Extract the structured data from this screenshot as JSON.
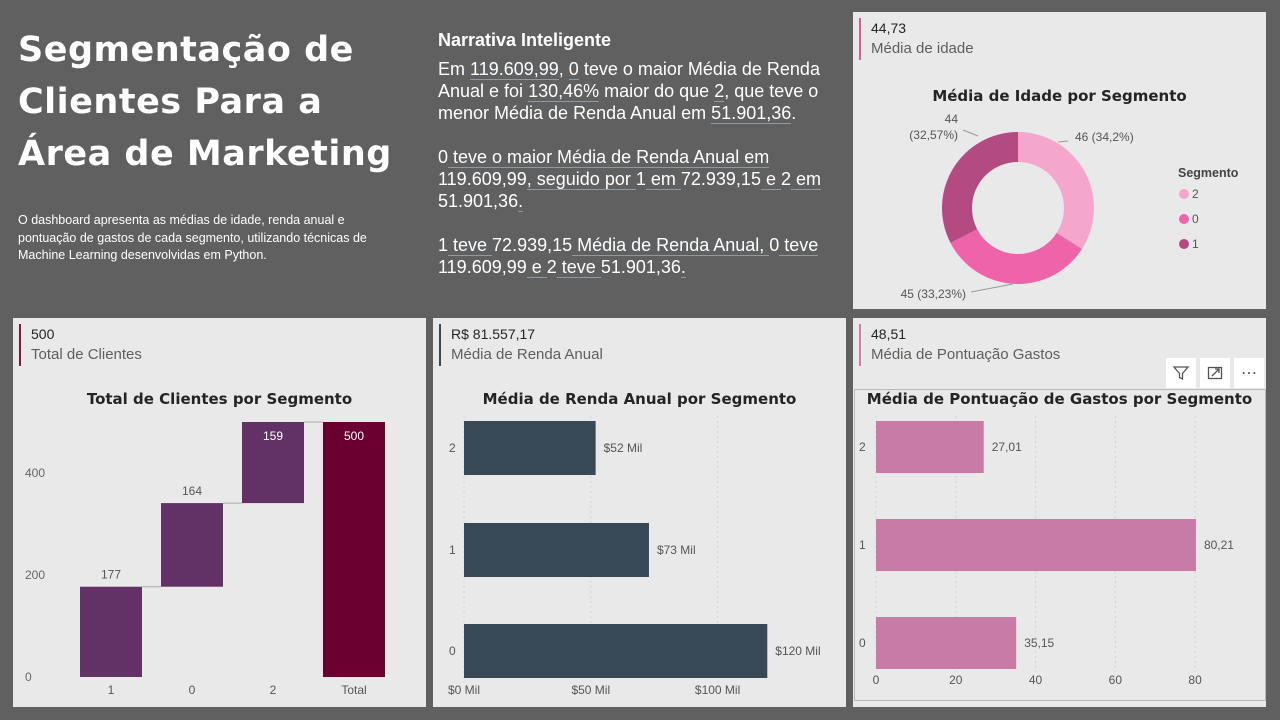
{
  "header": {
    "title": "Segmentação de Clientes Para a Área de Marketing",
    "description": "O dashboard apresenta as médias de idade, renda anual e pontuação de gastos de cada segmento, utilizando técnicas de Machine Learning desenvolvidas em Python."
  },
  "narrative": {
    "title": "Narrativa Inteligente",
    "p1": [
      "Em ",
      "119.609,99",
      ", ",
      "0",
      " teve o maior Média de Renda Anual e foi ",
      "130,46%",
      " maior do que ",
      "2",
      ", que teve o menor Média de Renda Anual em ",
      "51.901,36",
      "."
    ],
    "p2": [
      "0",
      " teve o maior Média de Renda Anual em ",
      "119.609,99",
      ", seguido por ",
      "1",
      " em ",
      "72.939,15",
      " e ",
      "2",
      " em ",
      "51.901,36",
      "."
    ],
    "p3": [
      "1",
      " teve ",
      "72.939,15",
      " Média de Renda Anual, ",
      "0",
      " teve ",
      "119.609,99",
      " e ",
      "2",
      " teve ",
      "51.901,36",
      "."
    ]
  },
  "kpis": {
    "idade": {
      "value": "44,73",
      "label": "Média de idade"
    },
    "clientes": {
      "value": "500",
      "label": "Total de Clientes"
    },
    "renda": {
      "value": "R$ 81.557,17",
      "label": "Média de Renda Anual"
    },
    "gastos": {
      "value": "48,51",
      "label": "Média de Pontuação Gastos"
    }
  },
  "colors": {
    "accent_pink": "#e05a9a",
    "accent_dark": "#8a1a3a",
    "accent_slate": "#374856",
    "accent_rose": "#d07aa8"
  },
  "toolbar": {
    "icons": [
      "filter-icon",
      "focus-mode-icon",
      "more-options-icon"
    ],
    "more_label": "⋯"
  },
  "chart_data": [
    {
      "type": "pie",
      "title": "Média de Idade por Segmento",
      "legend_title": "Segmento",
      "legend_position": "right",
      "slices": [
        {
          "label": "2",
          "value": 46,
          "display": "46 (34,2%)",
          "color": "#f4a6cc"
        },
        {
          "label": "0",
          "value": 45,
          "display": "45 (33,23%)",
          "color": "#ee63a9"
        },
        {
          "label": "1",
          "value": 44,
          "display": "44 (32,57%)",
          "color": "#b34a82"
        }
      ],
      "legend": [
        "2",
        "0",
        "1"
      ]
    },
    {
      "type": "bar",
      "subtype": "waterfall",
      "title": "Total de Clientes por Segmento",
      "categories": [
        "1",
        "0",
        "2",
        "Total"
      ],
      "values": [
        177,
        164,
        159,
        500
      ],
      "ylim": [
        0,
        500
      ],
      "yticks": [
        "0",
        "200",
        "400"
      ],
      "colors": {
        "increase": "#623266",
        "total": "#6a0030"
      }
    },
    {
      "type": "bar",
      "orientation": "horizontal",
      "title": "Média de Renda Anual por Segmento",
      "categories": [
        "2",
        "1",
        "0"
      ],
      "values": [
        51901.36,
        72939.15,
        119609.99
      ],
      "labels": [
        "$52 Mil",
        "$73 Mil",
        "$120 Mil"
      ],
      "xticks": [
        "$0 Mil",
        "$50 Mil",
        "$100 Mil"
      ],
      "xlim": [
        0,
        140000
      ],
      "color": "#374856"
    },
    {
      "type": "bar",
      "orientation": "horizontal",
      "title": "Média de Pontuação de Gastos por Segmento",
      "categories": [
        "2",
        "1",
        "0"
      ],
      "values": [
        27.01,
        80.21,
        35.15
      ],
      "labels": [
        "27,01",
        "80,21",
        "35,15"
      ],
      "xticks": [
        "0",
        "20",
        "40",
        "60",
        "80"
      ],
      "xlim": [
        0,
        90
      ],
      "color": "#c97ba8"
    }
  ]
}
